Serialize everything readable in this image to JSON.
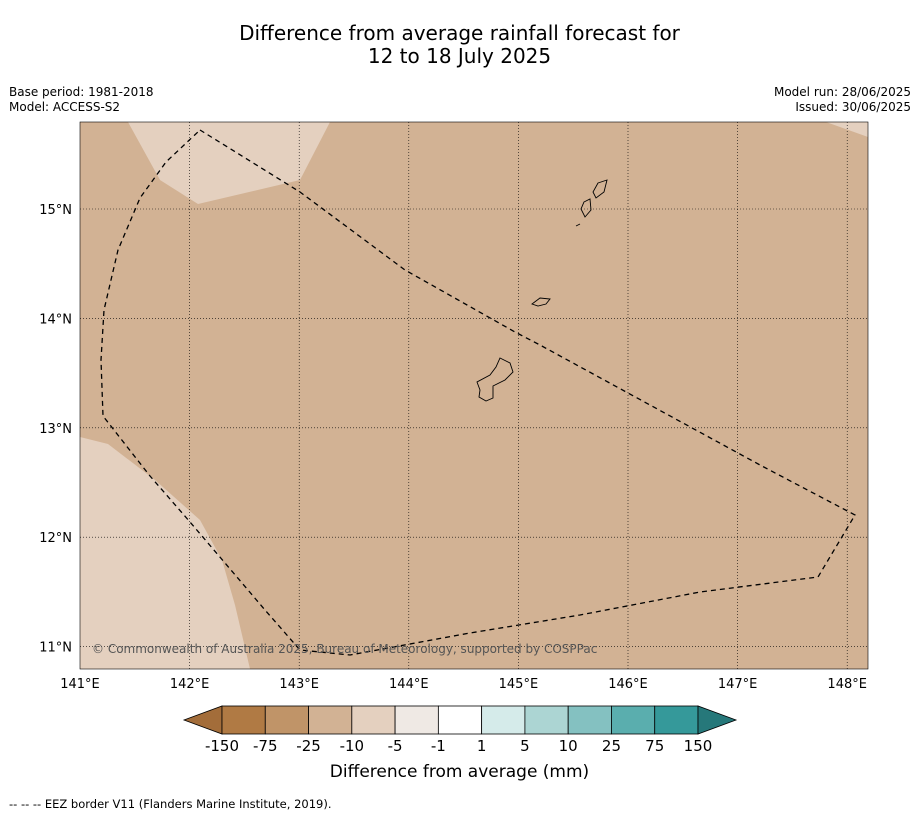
{
  "title": {
    "line1": "Difference from average rainfall forecast for",
    "line2": "12 to 18 July 2025"
  },
  "meta": {
    "base_period": "Base period: 1981-2018",
    "model": "Model: ACCESS-S2",
    "model_run": "Model run: 28/06/2025",
    "issued": "Issued: 30/06/2025"
  },
  "chart_data": {
    "type": "heatmap",
    "map_extent": {
      "lon": [
        141.0,
        148.2
      ],
      "lat": [
        10.8,
        15.8
      ]
    },
    "x_ticks": [
      "141°E",
      "142°E",
      "143°E",
      "144°E",
      "145°E",
      "146°E",
      "147°E",
      "148°E"
    ],
    "x_tick_values": [
      141,
      142,
      143,
      144,
      145,
      146,
      147,
      148
    ],
    "y_ticks": [
      "15°N",
      "14°N",
      "13°N",
      "12°N",
      "11°N"
    ],
    "y_tick_values": [
      15,
      14,
      13,
      12,
      11
    ],
    "grid": true,
    "background_category": "-25 to -10",
    "regions": [
      {
        "category": "-10 to -5",
        "description": "north, near 142–143°E"
      },
      {
        "category": "-10 to -5",
        "description": "south-west corner"
      },
      {
        "category": "-10 to -5",
        "description": "north-east corner"
      }
    ],
    "colorbar": {
      "labels": [
        "-150",
        "-75",
        "-25",
        "-10",
        "-5",
        "-1",
        "1",
        "5",
        "10",
        "25",
        "75",
        "150"
      ],
      "colors": [
        "#a36d3a",
        "#b07a44",
        "#c09468",
        "#d2b294",
        "#e4d0bf",
        "#efe9e4",
        "#ffffff",
        "#d5ebea",
        "#acd5d3",
        "#84c1c1",
        "#5aaeae",
        "#35999a",
        "#26787a"
      ],
      "title": "Difference from average (mm)"
    },
    "copyright": "© Commonwealth of Australia 2025, Bureau of Meteorology, supported by COSPPac"
  },
  "footer": "-- -- -- EEZ border V11 (Flanders Marine Institute, 2019)."
}
